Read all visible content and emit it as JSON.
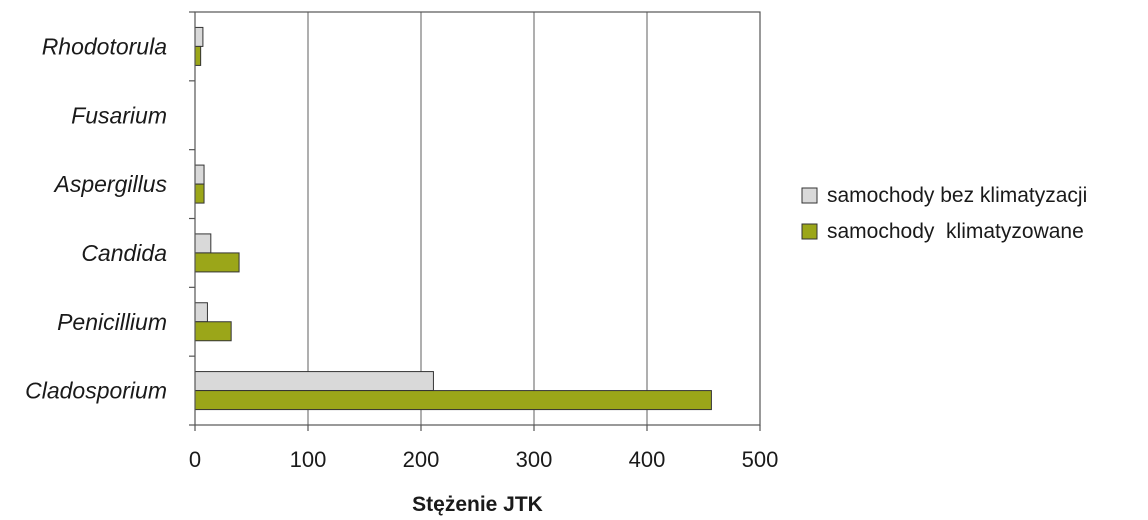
{
  "chart_data": {
    "type": "bar",
    "orientation": "horizontal",
    "categories": [
      "Rhodotorula",
      "Fusarium",
      "Aspergillus",
      "Candida",
      "Penicillium",
      "Cladosporium"
    ],
    "series": [
      {
        "name": "samochody bez klimatyzacji",
        "color": "#d9d9d9",
        "values": [
          7,
          0,
          8,
          14,
          11,
          211
        ]
      },
      {
        "name": "samochody  klimatyzowane",
        "color": "#9ba619",
        "values": [
          5,
          0,
          8,
          39,
          32,
          457
        ]
      }
    ],
    "xlabel": "Stężenie JTK",
    "ylabel": "",
    "xlim": [
      0,
      500
    ],
    "xticks": [
      0,
      100,
      200,
      300,
      400,
      500
    ],
    "grid": "vertical",
    "legend": "right"
  }
}
